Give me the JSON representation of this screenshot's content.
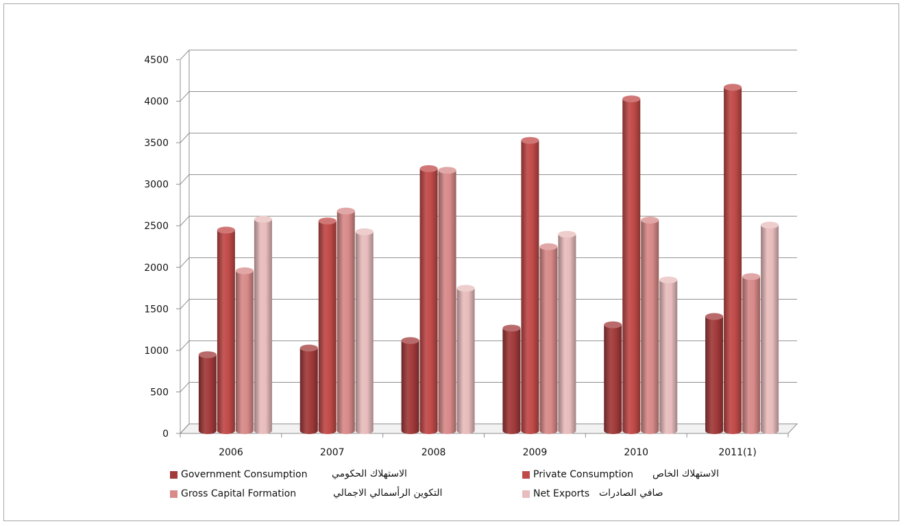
{
  "chart_data": {
    "type": "bar",
    "categories": [
      "2006",
      "2007",
      "2008",
      "2009",
      "2010",
      "2011(1)"
    ],
    "series": [
      {
        "name": "Government Consumption",
        "name_ar": "الاستهلاك الحكومي",
        "color": "#a23a3a",
        "values": [
          890,
          970,
          1060,
          1210,
          1250,
          1350
        ]
      },
      {
        "name": "Private Consumption",
        "name_ar": "الاستهلاك الخاص",
        "color": "#c04a48",
        "values": [
          2390,
          2500,
          3130,
          3470,
          3970,
          4110
        ]
      },
      {
        "name": "Gross Capital Formation",
        "name_ar": "التكوين الرأسمالي الاجمالي",
        "color": "#d78a88",
        "values": [
          1900,
          2620,
          3110,
          2190,
          2510,
          1830
        ]
      },
      {
        "name": "Net Exports",
        "name_ar": "صافي الصادرات",
        "color": "#e8bcbc",
        "values": [
          2520,
          2370,
          1690,
          2340,
          1790,
          2450
        ]
      }
    ],
    "yticks": [
      "0",
      "500",
      "1000",
      "1500",
      "2000",
      "2500",
      "3000",
      "3500",
      "4000",
      "4500"
    ],
    "ylim": [
      0,
      4500
    ],
    "grid": true,
    "legend_position": "bottom",
    "title": "",
    "xlabel": "",
    "ylabel": ""
  }
}
